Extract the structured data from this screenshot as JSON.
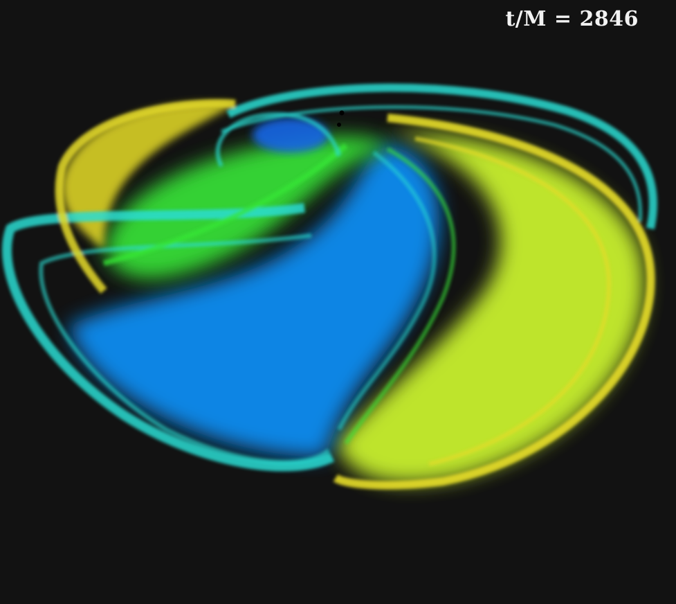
{
  "time_label": "t/M = 2846",
  "background_color": "#121212",
  "colors": {
    "blue": "#0a8cf0",
    "deep_blue": "#1466e6",
    "cyan": "#28dcd2",
    "green": "#37e637",
    "lime": "#c8f02d",
    "yellow": "#e6dc28",
    "black_hole": "#000000"
  }
}
